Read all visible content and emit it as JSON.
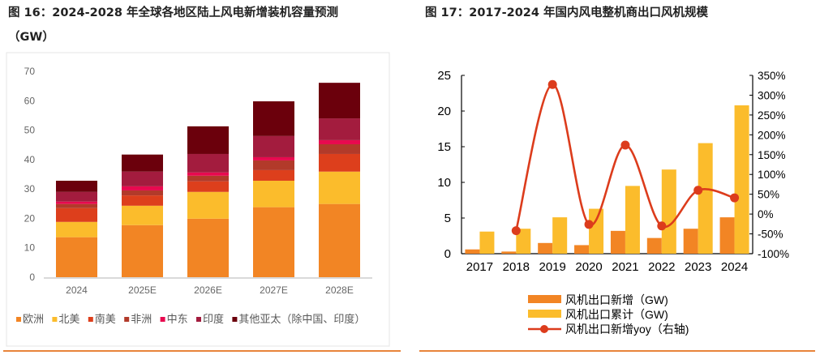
{
  "left_title_line1": "图 16：2024-2028 年全球各地区陆上风电新增装机容量预测",
  "left_title_line2": "（GW）",
  "right_title": "图 17：2017-2024 年国内风电整机商出口风机规模",
  "chart_data": [
    {
      "type": "bar",
      "stacked": true,
      "title": "图 16：2024-2028 年全球各地区陆上风电新增装机容量预测（GW）",
      "categories": [
        "2024",
        "2025E",
        "2026E",
        "2027E",
        "2028E"
      ],
      "ylim": [
        0,
        70
      ],
      "yticks": [
        0,
        10,
        20,
        30,
        40,
        50,
        60,
        70
      ],
      "grid": false,
      "legend_position": "bottom",
      "series": [
        {
          "name": "欧洲",
          "color": "#F28524",
          "values": [
            13.6,
            17.7,
            19.9,
            23.8,
            24.9
          ]
        },
        {
          "name": "北美",
          "color": "#FBBC2C",
          "values": [
            5.2,
            6.6,
            9.1,
            9.0,
            11.0
          ]
        },
        {
          "name": "南美",
          "color": "#DD3F1C",
          "values": [
            4.7,
            3.5,
            3.6,
            3.6,
            6.0
          ]
        },
        {
          "name": "非洲",
          "color": "#B23A2A",
          "values": [
            1.4,
            1.7,
            1.9,
            3.3,
            3.3
          ]
        },
        {
          "name": "中东",
          "color": "#E8094F",
          "values": [
            0.8,
            1.4,
            1.1,
            1.1,
            1.4
          ]
        },
        {
          "name": "印度",
          "color": "#A31C3E",
          "values": [
            3.3,
            5.0,
            6.3,
            7.2,
            7.4
          ]
        },
        {
          "name": "其他亚太（除中国、印度）",
          "color": "#6B000C",
          "values": [
            3.8,
            5.8,
            9.4,
            11.8,
            12.1
          ]
        }
      ]
    },
    {
      "type": "bar+line",
      "title": "图 17：2017-2024 年国内风电整机商出口风机规模",
      "categories": [
        "2017",
        "2018",
        "2019",
        "2020",
        "2021",
        "2022",
        "2023",
        "2024"
      ],
      "ylim": [
        0,
        25
      ],
      "yticks": [
        0,
        5,
        10,
        15,
        20,
        25
      ],
      "y2lim": [
        -100,
        350
      ],
      "y2ticks": [
        "-100%",
        "-50%",
        "0%",
        "50%",
        "100%",
        "150%",
        "200%",
        "250%",
        "300%",
        "350%"
      ],
      "grid": false,
      "legend_position": "bottom",
      "series": [
        {
          "name": "风机出口新增（GW)",
          "type": "bar",
          "color": "#F28524",
          "values": [
            0.6,
            0.3,
            1.5,
            1.2,
            3.2,
            2.2,
            3.5,
            5.1
          ]
        },
        {
          "name": "风机出口累计（GW)",
          "type": "bar",
          "color": "#FBBC2C",
          "values": [
            3.1,
            3.5,
            5.1,
            6.3,
            9.5,
            11.8,
            15.5,
            20.8
          ]
        },
        {
          "name": "风机出口新增yoy（右轴)",
          "type": "line",
          "axis": "right",
          "color": "#DC3C1C",
          "values": [
            null,
            -42,
            327,
            -26,
            174,
            -30,
            60,
            41
          ]
        }
      ]
    }
  ]
}
